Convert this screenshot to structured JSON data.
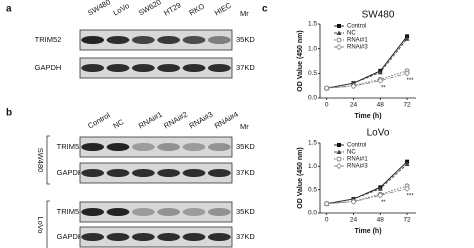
{
  "panels": {
    "a": "a",
    "b": "b",
    "c": "c"
  },
  "blot_a": {
    "lanes": [
      "SW480",
      "LoVo",
      "SW620",
      "HT29",
      "RKO",
      "HIEC"
    ],
    "mr": "Mr",
    "rows": [
      {
        "label": "TRIM52",
        "size": "35KD"
      },
      {
        "label": "GAPDH",
        "size": "37KD"
      }
    ]
  },
  "blot_b": {
    "lanes": [
      "Control",
      "NC",
      "RNAi#1",
      "RNAi#2",
      "RNAi#3",
      "RNAi#4"
    ],
    "mr": "Mr",
    "groups": [
      {
        "label": "SW480",
        "rows": [
          {
            "label": "TRIM52",
            "size": "35KD"
          },
          {
            "label": "GAPDH",
            "size": "37KD"
          }
        ]
      },
      {
        "label": "LoVo",
        "rows": [
          {
            "label": "TRIM52",
            "size": "35KD"
          },
          {
            "label": "GAPDH",
            "size": "37KD"
          }
        ]
      }
    ]
  },
  "chart_data": [
    {
      "type": "line",
      "title": "SW480",
      "xlabel": "Time (h)",
      "ylabel": "OD Value (450 nm)",
      "x": [
        0,
        24,
        48,
        72
      ],
      "xlim": [
        -6,
        80
      ],
      "xticks": [
        0,
        24,
        48,
        72
      ],
      "ylim": [
        0,
        1.5
      ],
      "yticks": [
        {
          "value": 0,
          "label": "0.0"
        },
        0.5,
        {
          "value": 1,
          "label": "1.0"
        },
        1.5
      ],
      "series": [
        {
          "name": "Control",
          "color": "#111",
          "marker": "square",
          "values": [
            0.2,
            0.3,
            0.55,
            1.25
          ]
        },
        {
          "name": "NC",
          "color": "#444",
          "marker": "triangle",
          "values": [
            0.2,
            0.3,
            0.52,
            1.2
          ]
        },
        {
          "name": "RNAi#1",
          "color": "#666",
          "marker": "circle",
          "values": [
            0.2,
            0.25,
            0.38,
            0.55
          ]
        },
        {
          "name": "RNAi#3",
          "color": "#888",
          "marker": "diamond",
          "values": [
            0.2,
            0.24,
            0.35,
            0.5
          ]
        }
      ],
      "annotations": [
        "**",
        "***"
      ]
    },
    {
      "type": "line",
      "title": "LoVo",
      "xlabel": "Time (h)",
      "ylabel": "OD Value (450 nm)",
      "x": [
        0,
        24,
        48,
        72
      ],
      "xlim": [
        -6,
        80
      ],
      "xticks": [
        0,
        24,
        48,
        72
      ],
      "ylim": [
        0,
        1.5
      ],
      "yticks": [
        {
          "value": 0,
          "label": "0.0"
        },
        0.5,
        {
          "value": 1,
          "label": "1.0"
        },
        1.5
      ],
      "series": [
        {
          "name": "Control",
          "color": "#111",
          "marker": "square",
          "values": [
            0.2,
            0.3,
            0.55,
            1.1
          ]
        },
        {
          "name": "NC",
          "color": "#444",
          "marker": "triangle",
          "values": [
            0.2,
            0.3,
            0.52,
            1.05
          ]
        },
        {
          "name": "RNAi#1",
          "color": "#666",
          "marker": "circle",
          "values": [
            0.2,
            0.25,
            0.4,
            0.58
          ]
        },
        {
          "name": "RNAi#3",
          "color": "#888",
          "marker": "diamond",
          "values": [
            0.2,
            0.24,
            0.38,
            0.52
          ]
        }
      ],
      "annotations": [
        "**",
        "***"
      ]
    }
  ]
}
